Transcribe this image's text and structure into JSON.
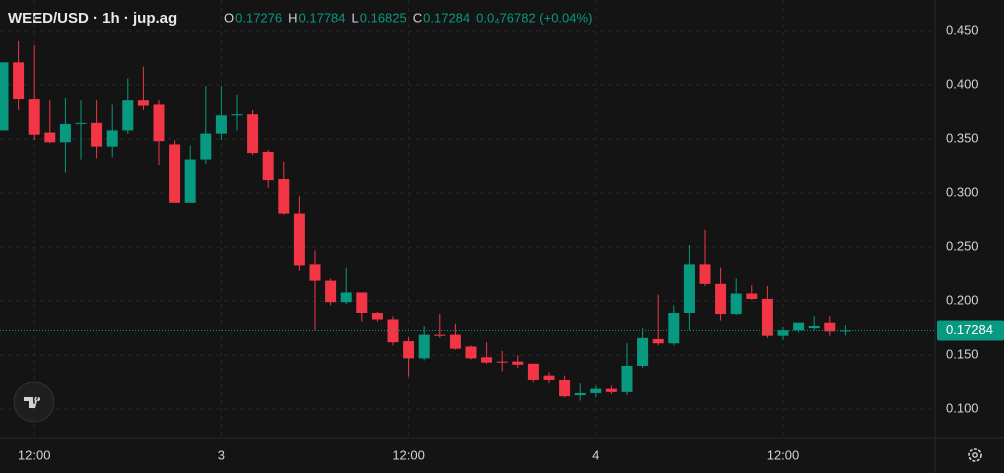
{
  "chart_data": {
    "type": "candlestick",
    "title": "WEED/USD · 1h · jup.ag",
    "ohlc_labels": [
      "O",
      "H",
      "L",
      "C"
    ],
    "header_values": [
      "0.17276",
      "0.17784",
      "0.16825",
      "0.17284"
    ],
    "change": "0.0₄76782 (+0.04%)",
    "categories": [
      null,
      null,
      "12:00",
      null,
      null,
      null,
      null,
      null,
      null,
      null,
      null,
      null,
      null,
      null,
      "3",
      null,
      null,
      null,
      null,
      null,
      null,
      null,
      null,
      null,
      null,
      null,
      "12:00",
      null,
      null,
      null,
      null,
      null,
      null,
      null,
      null,
      null,
      null,
      null,
      "4",
      null,
      null,
      null,
      null,
      null,
      null,
      null,
      null,
      null,
      null,
      null,
      "12:00",
      null,
      null,
      null,
      null
    ],
    "open": [
      0.358,
      0.421,
      0.387,
      0.356,
      0.347,
      0.364,
      0.365,
      0.343,
      0.358,
      0.386,
      0.382,
      0.345,
      0.291,
      0.331,
      0.355,
      0.372,
      0.373,
      0.338,
      0.313,
      0.281,
      0.234,
      0.219,
      0.199,
      0.208,
      0.189,
      0.183,
      0.163,
      0.147,
      0.169,
      0.169,
      0.158,
      0.148,
      0.144,
      0.144,
      0.142,
      0.131,
      0.127,
      0.113,
      0.115,
      0.119,
      0.116,
      0.14,
      0.165,
      0.161,
      0.189,
      0.234,
      0.216,
      0.188,
      0.207,
      0.202,
      0.168,
      0.173,
      0.175,
      0.18,
      0.17276
    ],
    "high": [
      0.421,
      0.441,
      0.437,
      0.386,
      0.388,
      0.386,
      0.386,
      0.382,
      0.406,
      0.417,
      0.386,
      0.349,
      0.344,
      0.399,
      0.399,
      0.391,
      0.377,
      0.34,
      0.329,
      0.297,
      0.247,
      0.221,
      0.231,
      0.208,
      0.19,
      0.186,
      0.167,
      0.177,
      0.188,
      0.179,
      0.159,
      0.162,
      0.154,
      0.15,
      0.142,
      0.134,
      0.131,
      0.124,
      0.122,
      0.122,
      0.161,
      0.175,
      0.206,
      0.196,
      0.252,
      0.266,
      0.231,
      0.221,
      0.215,
      0.214,
      0.176,
      0.18,
      0.186,
      0.186,
      0.17784
    ],
    "low": [
      0.358,
      0.377,
      0.349,
      0.346,
      0.319,
      0.331,
      0.332,
      0.333,
      0.355,
      0.377,
      0.326,
      0.291,
      0.291,
      0.327,
      0.349,
      0.358,
      0.335,
      0.305,
      0.28,
      0.228,
      0.173,
      0.196,
      0.197,
      0.181,
      0.181,
      0.159,
      0.13,
      0.145,
      0.166,
      0.155,
      0.146,
      0.142,
      0.135,
      0.138,
      0.125,
      0.124,
      0.111,
      0.108,
      0.111,
      0.114,
      0.113,
      0.138,
      0.159,
      0.159,
      0.173,
      0.214,
      0.182,
      0.187,
      0.201,
      0.166,
      0.164,
      0.171,
      0.173,
      0.168,
      0.16825
    ],
    "close": [
      0.421,
      0.387,
      0.354,
      0.347,
      0.364,
      0.365,
      0.343,
      0.358,
      0.386,
      0.381,
      0.348,
      0.291,
      0.331,
      0.355,
      0.372,
      0.373,
      0.337,
      0.312,
      0.281,
      0.233,
      0.219,
      0.199,
      0.208,
      0.189,
      0.183,
      0.162,
      0.147,
      0.169,
      0.168,
      0.156,
      0.147,
      0.143,
      0.143,
      0.141,
      0.127,
      0.127,
      0.112,
      0.115,
      0.119,
      0.116,
      0.14,
      0.166,
      0.161,
      0.189,
      0.234,
      0.216,
      0.188,
      0.207,
      0.202,
      0.168,
      0.173,
      0.18,
      0.177,
      0.172,
      0.17284
    ],
    "up_color": "#089981",
    "down_color": "#f23645",
    "ylim": [
      0.0733,
      0.4787
    ],
    "yticks": [
      {
        "value": 0.1,
        "label": "0.100"
      },
      {
        "value": 0.15,
        "label": "0.150"
      },
      {
        "value": 0.2,
        "label": "0.200"
      },
      {
        "value": 0.25,
        "label": "0.250"
      },
      {
        "value": 0.3,
        "label": "0.300"
      },
      {
        "value": 0.35,
        "label": "0.350"
      },
      {
        "value": 0.4,
        "label": "0.400"
      },
      {
        "value": 0.45,
        "label": "0.450"
      }
    ],
    "grid": true
  }
}
